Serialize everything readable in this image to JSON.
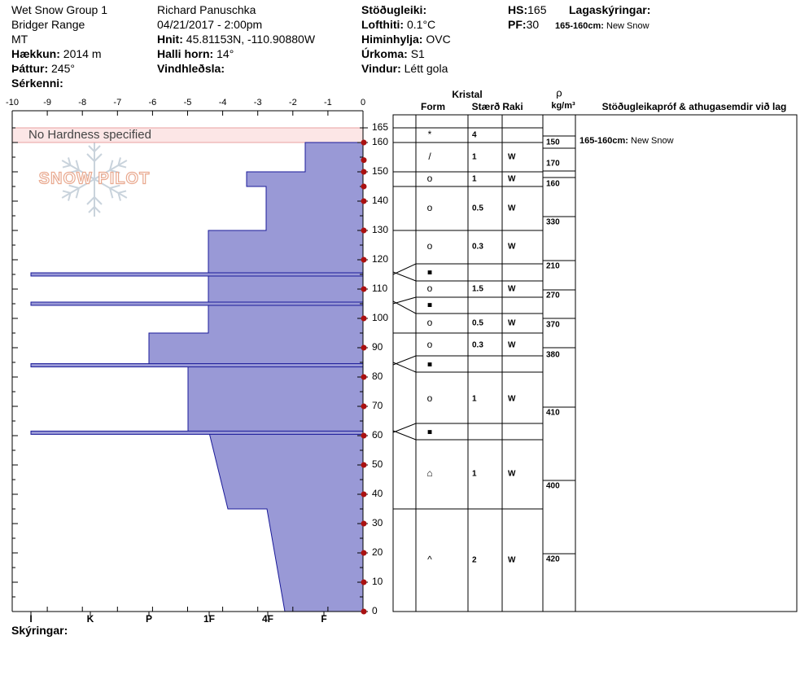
{
  "header": {
    "col1": [
      "Wet Snow Group 1",
      "Bridger Range",
      "MT"
    ],
    "elevation_label": "Hækkun:",
    "elevation": "2014 m",
    "aspect_label": "Þáttur:",
    "aspect": "245°",
    "features_label": "Sérkenni:",
    "observer": "Richard Panuschka",
    "datetime": "04/21/2017 - 2:00pm",
    "coords_label": "Hnit:",
    "coords": "45.81153N, -110.90880W",
    "slope_label": "Halli horn:",
    "slope": "14°",
    "wind_loading_label": "Vindhleðsla:",
    "stability_label": "Stöðugleiki:",
    "air_temp_label": "Lofthiti:",
    "air_temp": "0.1°C",
    "sky_label": "Himinhylja:",
    "sky": "OVC",
    "precip_label": "Úrkoma:",
    "precip": "S1",
    "wind_label": "Vindur:",
    "wind": "Létt gola",
    "hs_label": "HS:",
    "hs": "165",
    "pf_label": "PF:",
    "pf": "30",
    "layer_notes_label": "Lagaskýringar:",
    "layer_note_range": "165-160cm:",
    "layer_note_text": "New Snow"
  },
  "legend_label": "Skýringar:",
  "no_hardness": "No Hardness specified",
  "watermark": "SNOW PILOT",
  "table_headers": {
    "crystal": "Kristal",
    "form": "Form",
    "size": "Stærð",
    "moisture": "Raki",
    "rho": "ρ",
    "density_unit": "kg/m³",
    "comments": "Stöðugleikapróf & athugasemdir við lag"
  },
  "comment_entry": {
    "range": "165-160cm:",
    "text": "New Snow"
  },
  "colors": {
    "fill": "#9999d6",
    "edge": "#1a1a99",
    "point": "#aa1111",
    "shade": "#fce6e6"
  },
  "chart_data": {
    "type": "area",
    "x_ticks": [
      "-10",
      "-9",
      "-8",
      "-7",
      "-6",
      "-5",
      "-4",
      "-3",
      "-2",
      "-1",
      "0"
    ],
    "hardness_ticks": [
      "I",
      "K",
      "P",
      "1F",
      "4F",
      "F"
    ],
    "y_ticks": [
      "165",
      "160",
      "150",
      "140",
      "130",
      "120",
      "110",
      "100",
      "90",
      "80",
      "70",
      "60",
      "50",
      "40",
      "30",
      "20",
      "10",
      "0"
    ],
    "ylim": [
      0,
      165
    ],
    "temperature_points": [
      160,
      154,
      150,
      145,
      140,
      130,
      120,
      110,
      100,
      90,
      80,
      70,
      60,
      50,
      40,
      30,
      20,
      10,
      0
    ],
    "hardness_profile": [
      {
        "top": 160,
        "bottom": 150,
        "value": "4F-F"
      },
      {
        "top": 150,
        "bottom": 145,
        "value": "4F"
      },
      {
        "top": 145,
        "bottom": 130,
        "value": "4F"
      },
      {
        "top": 130,
        "bottom": 95,
        "value": "1F"
      },
      {
        "top": 95,
        "bottom": 84,
        "value": "P-1F"
      },
      {
        "top": 84,
        "bottom": 61,
        "value": "1F"
      },
      {
        "top": 61,
        "bottom": 35,
        "value": "1F-4F"
      },
      {
        "top": 35,
        "bottom": 0,
        "value": "4F-F"
      }
    ],
    "thin_layers": [
      {
        "depth": 115,
        "value": "I"
      },
      {
        "depth": 105,
        "value": "I"
      },
      {
        "depth": 84,
        "value": "I"
      },
      {
        "depth": 61,
        "value": "I"
      }
    ]
  },
  "layers": [
    {
      "form": "*",
      "size": "4",
      "moisture": "",
      "density": "150"
    },
    {
      "form": "/",
      "size": "1",
      "moisture": "W",
      "density": "170"
    },
    {
      "form": "o",
      "size": "1",
      "moisture": "W",
      "density": "160"
    },
    {
      "form": "o",
      "size": "0.5",
      "moisture": "W",
      "density": "330"
    },
    {
      "form": "o",
      "size": "0.3",
      "moisture": "W",
      "density": "210"
    },
    {
      "form": "■",
      "size": "",
      "moisture": "",
      "density": ""
    },
    {
      "form": "o",
      "size": "1.5",
      "moisture": "W",
      "density": "270"
    },
    {
      "form": "■",
      "size": "",
      "moisture": "",
      "density": ""
    },
    {
      "form": "o",
      "size": "0.5",
      "moisture": "W",
      "density": "370"
    },
    {
      "form": "o",
      "size": "0.3",
      "moisture": "W",
      "density": "380"
    },
    {
      "form": "■",
      "size": "",
      "moisture": "",
      "density": ""
    },
    {
      "form": "o",
      "size": "1",
      "moisture": "W",
      "density": "410"
    },
    {
      "form": "■",
      "size": "",
      "moisture": "",
      "density": ""
    },
    {
      "form": "⌂",
      "size": "1",
      "moisture": "W",
      "density": "400"
    },
    {
      "form": "^",
      "size": "2",
      "moisture": "W",
      "density": "420"
    }
  ]
}
